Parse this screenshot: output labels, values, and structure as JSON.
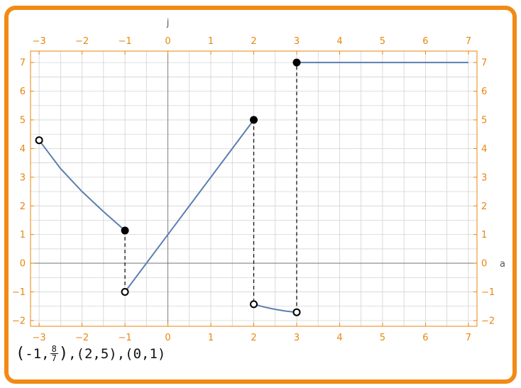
{
  "chart_data": {
    "type": "line",
    "title": "",
    "xlabel": "a",
    "ylabel": "j",
    "xlim": [
      -3.2,
      7.2
    ],
    "ylim": [
      -2.2,
      7.4
    ],
    "xticks": [
      -3,
      -2,
      -1,
      0,
      1,
      2,
      3,
      4,
      5,
      6,
      7
    ],
    "yticks": [
      -2,
      -1,
      0,
      1,
      2,
      3,
      4,
      5,
      6,
      7
    ],
    "xtick_labels": [
      "−3",
      "−2",
      "−1",
      "0",
      "1",
      "2",
      "3",
      "4",
      "5",
      "6",
      "7"
    ],
    "ytick_labels": [
      "−2",
      "−1",
      "0",
      "1",
      "2",
      "3",
      "4",
      "5",
      "6",
      "7"
    ],
    "grid": true,
    "line_color": "#5b7fb0",
    "segments": [
      {
        "x": [
          -3,
          -2.5,
          -2,
          -1.5,
          -1
        ],
        "y": [
          4.29,
          3.3,
          2.5,
          1.8,
          1.14
        ]
      },
      {
        "x": [
          -1,
          2
        ],
        "y": [
          -1,
          5
        ]
      },
      {
        "x": [
          2,
          2.25,
          2.5,
          2.75,
          3
        ],
        "y": [
          -1.43,
          -1.53,
          -1.61,
          -1.67,
          -1.71
        ]
      },
      {
        "x": [
          3,
          7
        ],
        "y": [
          7,
          7
        ]
      }
    ],
    "points": [
      {
        "x": -3,
        "y": 4.29,
        "filled": false
      },
      {
        "x": -1,
        "y": 1.14,
        "filled": true
      },
      {
        "x": -1,
        "y": -1,
        "filled": false
      },
      {
        "x": 2,
        "y": 5,
        "filled": true
      },
      {
        "x": 2,
        "y": -1.43,
        "filled": false
      },
      {
        "x": 3,
        "y": -1.71,
        "filled": false
      },
      {
        "x": 3,
        "y": 7,
        "filled": true
      }
    ],
    "dashed_jumps": [
      {
        "x": -1,
        "y": [
          1.14,
          -1
        ]
      },
      {
        "x": 2,
        "y": [
          5,
          -1.43
        ]
      },
      {
        "x": 3,
        "y": [
          -1.71,
          7
        ]
      }
    ]
  },
  "caption": {
    "p1_open": "(",
    "p1_a": "-1,",
    "p1_num": "8",
    "p1_den": "7",
    "p1_close": ")",
    "sep1": ",",
    "p2": "(2,5)",
    "sep2": ",",
    "p3": "(0,1)"
  },
  "colors": {
    "frame": "#f28a15",
    "tick": "#e8860f",
    "grid": "#cccccc"
  }
}
